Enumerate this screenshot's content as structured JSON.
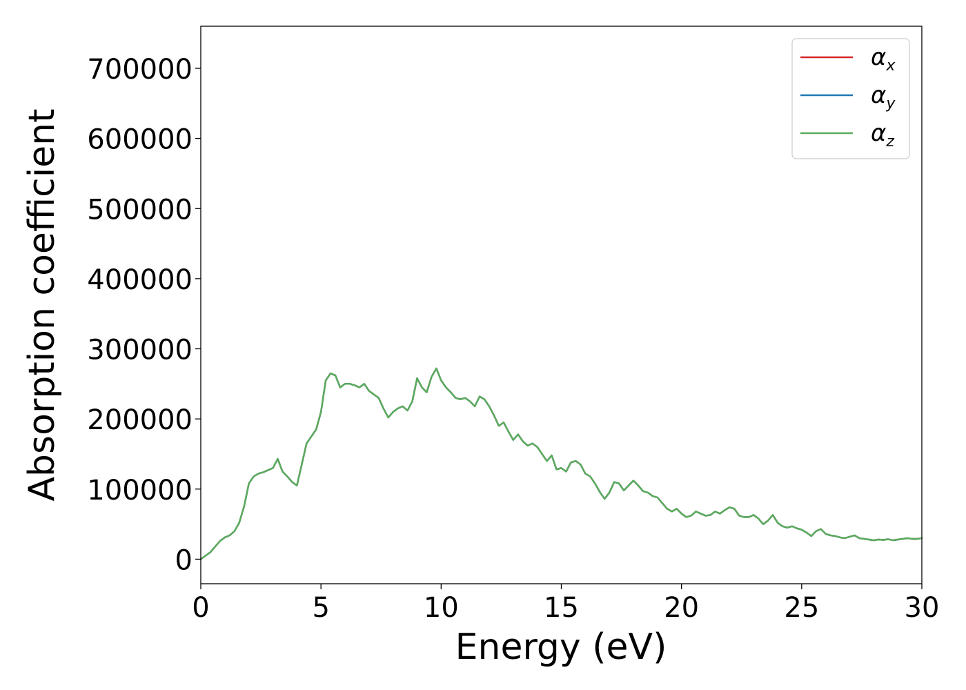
{
  "chart_data": {
    "type": "line",
    "title": "",
    "xlabel": "Energy (eV)",
    "ylabel": "Absorption coefficient",
    "xlim": [
      0,
      30
    ],
    "ylim": [
      -35000,
      760000
    ],
    "xticks": [
      0,
      5,
      10,
      15,
      20,
      25,
      30
    ],
    "xtick_labels": [
      "0",
      "5",
      "10",
      "15",
      "20",
      "25",
      "30"
    ],
    "yticks": [
      0,
      100000,
      200000,
      300000,
      400000,
      500000,
      600000,
      700000
    ],
    "ytick_labels": [
      "0",
      "100000",
      "200000",
      "300000",
      "400000",
      "500000",
      "600000",
      "700000"
    ],
    "grid": false,
    "legend_position": "top-right",
    "x": [
      0,
      0.2,
      0.4,
      0.6,
      0.8,
      1.0,
      1.2,
      1.4,
      1.6,
      1.8,
      2.0,
      2.2,
      2.4,
      2.6,
      2.8,
      3.0,
      3.2,
      3.4,
      3.6,
      3.8,
      4.0,
      4.2,
      4.4,
      4.6,
      4.8,
      5.0,
      5.2,
      5.4,
      5.6,
      5.8,
      6.0,
      6.2,
      6.4,
      6.6,
      6.8,
      7.0,
      7.2,
      7.4,
      7.6,
      7.8,
      8.0,
      8.2,
      8.4,
      8.6,
      8.8,
      9.0,
      9.2,
      9.4,
      9.6,
      9.8,
      10.0,
      10.2,
      10.4,
      10.6,
      10.8,
      11.0,
      11.2,
      11.4,
      11.6,
      11.8,
      12.0,
      12.2,
      12.4,
      12.6,
      12.8,
      13.0,
      13.2,
      13.4,
      13.6,
      13.8,
      14.0,
      14.2,
      14.4,
      14.6,
      14.8,
      15.0,
      15.2,
      15.4,
      15.6,
      15.8,
      16.0,
      16.2,
      16.4,
      16.6,
      16.8,
      17.0,
      17.2,
      17.4,
      17.6,
      17.8,
      18.0,
      18.2,
      18.4,
      18.6,
      18.8,
      19.0,
      19.2,
      19.4,
      19.6,
      19.8,
      20.0,
      20.2,
      20.4,
      20.6,
      20.8,
      21.0,
      21.2,
      21.4,
      21.6,
      21.8,
      22.0,
      22.2,
      22.4,
      22.6,
      22.8,
      23.0,
      23.2,
      23.4,
      23.6,
      23.8,
      24.0,
      24.2,
      24.4,
      24.6,
      24.8,
      25.0,
      25.2,
      25.4,
      25.6,
      25.8,
      26.0,
      26.2,
      26.4,
      26.6,
      26.8,
      27.0,
      27.2,
      27.4,
      27.6,
      27.8,
      28.0,
      28.2,
      28.4,
      28.6,
      28.8,
      29.0,
      29.2,
      29.4,
      29.6,
      29.8,
      30.0
    ],
    "series": [
      {
        "name": "αx",
        "color": "#d62728",
        "y": [
          0,
          5000,
          10000,
          18000,
          26000,
          31000,
          34000,
          40000,
          52000,
          75000,
          108000,
          118000,
          122000,
          124000,
          127000,
          130000,
          143000,
          125000,
          118000,
          110000,
          105000,
          135000,
          165000,
          175000,
          185000,
          210000,
          255000,
          265000,
          262000,
          245000,
          250000,
          250000,
          248000,
          245000,
          250000,
          240000,
          235000,
          230000,
          215000,
          202000,
          210000,
          215000,
          218000,
          212000,
          225000,
          258000,
          245000,
          238000,
          260000,
          272000,
          255000,
          245000,
          238000,
          230000,
          228000,
          230000,
          225000,
          218000,
          232000,
          228000,
          218000,
          205000,
          190000,
          195000,
          182000,
          170000,
          178000,
          168000,
          162000,
          165000,
          160000,
          150000,
          140000,
          148000,
          128000,
          130000,
          125000,
          138000,
          140000,
          135000,
          122000,
          118000,
          108000,
          96000,
          86000,
          95000,
          110000,
          108000,
          98000,
          105000,
          112000,
          105000,
          97000,
          95000,
          90000,
          88000,
          80000,
          72000,
          68000,
          72000,
          65000,
          60000,
          62000,
          68000,
          65000,
          62000,
          63000,
          68000,
          65000,
          70000,
          74000,
          72000,
          62000,
          60000,
          60000,
          63000,
          58000,
          50000,
          55000,
          63000,
          52000,
          47000,
          45000,
          47000,
          44000,
          42000,
          38000,
          33000,
          40000,
          43000,
          36000,
          34000,
          33000,
          31000,
          30000,
          32000,
          34000,
          30000,
          29000,
          28000,
          27000,
          28000,
          27500,
          28500,
          27000,
          28000,
          29000,
          30000,
          29000,
          29000,
          30000
        ]
      },
      {
        "name": "αy",
        "color": "#1f77b4",
        "y": [
          0,
          5000,
          10000,
          18000,
          26000,
          31000,
          34000,
          40000,
          52000,
          75000,
          108000,
          118000,
          122000,
          124000,
          127000,
          130000,
          143000,
          125000,
          118000,
          110000,
          105000,
          135000,
          165000,
          175000,
          185000,
          210000,
          255000,
          265000,
          262000,
          245000,
          250000,
          250000,
          248000,
          245000,
          250000,
          240000,
          235000,
          230000,
          215000,
          202000,
          210000,
          215000,
          218000,
          212000,
          225000,
          258000,
          245000,
          238000,
          260000,
          272000,
          255000,
          245000,
          238000,
          230000,
          228000,
          230000,
          225000,
          218000,
          232000,
          228000,
          218000,
          205000,
          190000,
          195000,
          182000,
          170000,
          178000,
          168000,
          162000,
          165000,
          160000,
          150000,
          140000,
          148000,
          128000,
          130000,
          125000,
          138000,
          140000,
          135000,
          122000,
          118000,
          108000,
          96000,
          86000,
          95000,
          110000,
          108000,
          98000,
          105000,
          112000,
          105000,
          97000,
          95000,
          90000,
          88000,
          80000,
          72000,
          68000,
          72000,
          65000,
          60000,
          62000,
          68000,
          65000,
          62000,
          63000,
          68000,
          65000,
          70000,
          74000,
          72000,
          62000,
          60000,
          60000,
          63000,
          58000,
          50000,
          55000,
          63000,
          52000,
          47000,
          45000,
          47000,
          44000,
          42000,
          38000,
          33000,
          40000,
          43000,
          36000,
          34000,
          33000,
          31000,
          30000,
          32000,
          34000,
          30000,
          29000,
          28000,
          27000,
          28000,
          27500,
          28500,
          27000,
          28000,
          29000,
          30000,
          29000,
          29000,
          30000
        ]
      },
      {
        "name": "αz",
        "color": "#5aac5a",
        "y": [
          0,
          5000,
          10000,
          18000,
          26000,
          31000,
          34000,
          40000,
          52000,
          75000,
          108000,
          118000,
          122000,
          124000,
          127000,
          130000,
          143000,
          125000,
          118000,
          110000,
          105000,
          135000,
          165000,
          175000,
          185000,
          210000,
          255000,
          265000,
          262000,
          245000,
          250000,
          250000,
          248000,
          245000,
          250000,
          240000,
          235000,
          230000,
          215000,
          202000,
          210000,
          215000,
          218000,
          212000,
          225000,
          258000,
          245000,
          238000,
          260000,
          272000,
          255000,
          245000,
          238000,
          230000,
          228000,
          230000,
          225000,
          218000,
          232000,
          228000,
          218000,
          205000,
          190000,
          195000,
          182000,
          170000,
          178000,
          168000,
          162000,
          165000,
          160000,
          150000,
          140000,
          148000,
          128000,
          130000,
          125000,
          138000,
          140000,
          135000,
          122000,
          118000,
          108000,
          96000,
          86000,
          95000,
          110000,
          108000,
          98000,
          105000,
          112000,
          105000,
          97000,
          95000,
          90000,
          88000,
          80000,
          72000,
          68000,
          72000,
          65000,
          60000,
          62000,
          68000,
          65000,
          62000,
          63000,
          68000,
          65000,
          70000,
          74000,
          72000,
          62000,
          60000,
          60000,
          63000,
          58000,
          50000,
          55000,
          63000,
          52000,
          47000,
          45000,
          47000,
          44000,
          42000,
          38000,
          33000,
          40000,
          43000,
          36000,
          34000,
          33000,
          31000,
          30000,
          32000,
          34000,
          30000,
          29000,
          28000,
          27000,
          28000,
          27500,
          28500,
          27000,
          28000,
          29000,
          30000,
          29000,
          29000,
          30000
        ]
      }
    ],
    "legend": [
      {
        "symbol": "α",
        "sub": "x"
      },
      {
        "symbol": "α",
        "sub": "y"
      },
      {
        "symbol": "α",
        "sub": "z"
      }
    ]
  }
}
